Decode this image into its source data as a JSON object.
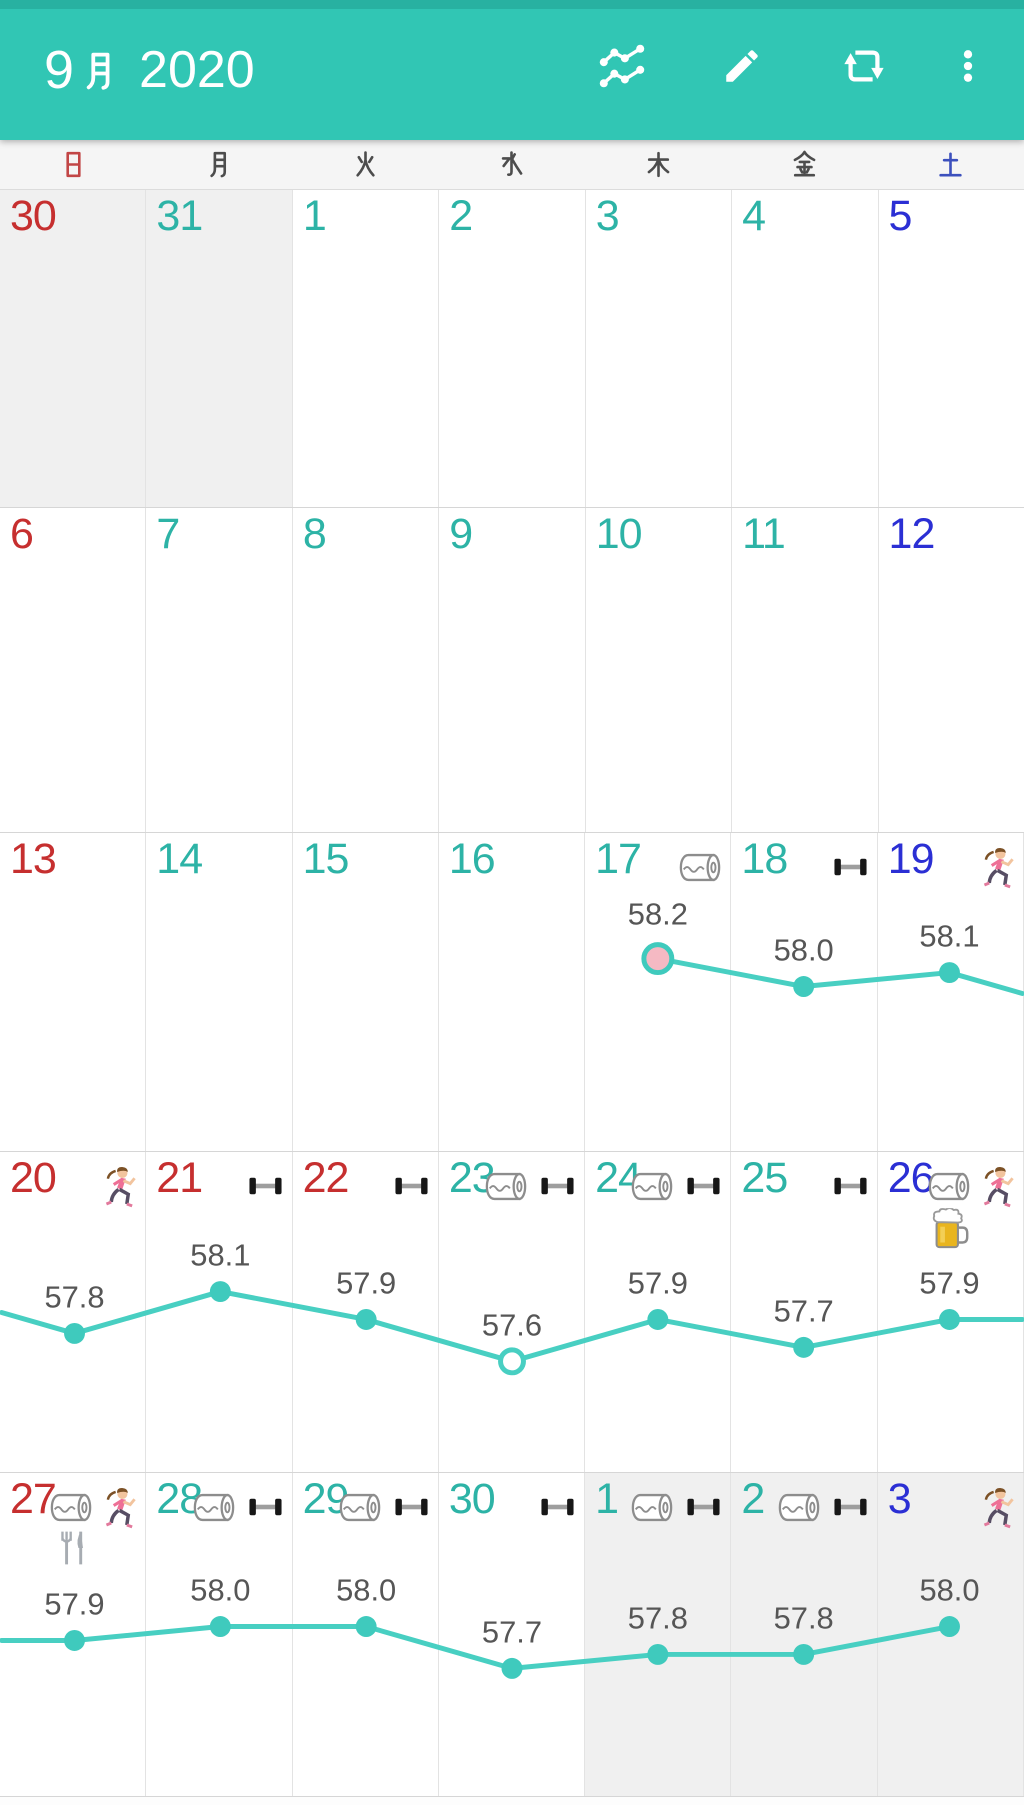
{
  "header": {
    "title_month": "9月",
    "title_month_digit": "9",
    "title_year": "2020",
    "title_full": "9月 2020",
    "toolbar_icons": [
      "chart-icon",
      "edit-icon",
      "repeat-icon",
      "overflow-menu-icon"
    ]
  },
  "weekday_header": [
    {
      "label": "日",
      "glyph": "sun",
      "color": "#c24646"
    },
    {
      "label": "月",
      "glyph": "moon",
      "color": "#4d4d4d"
    },
    {
      "label": "火",
      "glyph": "fire",
      "color": "#4d4d4d"
    },
    {
      "label": "水",
      "glyph": "water",
      "color": "#4d4d4d"
    },
    {
      "label": "木",
      "glyph": "tree",
      "color": "#4d4d4d"
    },
    {
      "label": "金",
      "glyph": "gold",
      "color": "#4d4d4d"
    },
    {
      "label": "土",
      "glyph": "earth",
      "color": "#3c50bd"
    }
  ],
  "colors": {
    "header_bg": "#31c6b4",
    "header_bg_top": "#28b1a1",
    "weekday_num": "#2db3a6",
    "sunday_num": "#c62f2f",
    "saturday_num": "#2b2fd4",
    "holiday_num": "#c62f2f",
    "line": "#48cfc2",
    "dot": "#3fcabd",
    "highlight_dot_fill": "#f5b9c3",
    "open_dot_fill": "#ffffff",
    "weight_label": "#565656",
    "out_month_bg": "#f0f0f0"
  },
  "weeks": [
    {
      "days": [
        {
          "num": "30",
          "type": "sunday",
          "out": true
        },
        {
          "num": "31",
          "type": "weekday",
          "out": true
        },
        {
          "num": "1",
          "type": "weekday"
        },
        {
          "num": "2",
          "type": "weekday"
        },
        {
          "num": "3",
          "type": "weekday"
        },
        {
          "num": "4",
          "type": "weekday"
        },
        {
          "num": "5",
          "type": "saturday"
        }
      ]
    },
    {
      "days": [
        {
          "num": "6",
          "type": "sunday"
        },
        {
          "num": "7",
          "type": "weekday"
        },
        {
          "num": "8",
          "type": "weekday"
        },
        {
          "num": "9",
          "type": "weekday"
        },
        {
          "num": "10",
          "type": "weekday"
        },
        {
          "num": "11",
          "type": "weekday"
        },
        {
          "num": "12",
          "type": "saturday"
        }
      ]
    },
    {
      "days": [
        {
          "num": "13",
          "type": "sunday"
        },
        {
          "num": "14",
          "type": "weekday"
        },
        {
          "num": "15",
          "type": "weekday"
        },
        {
          "num": "16",
          "type": "weekday"
        },
        {
          "num": "17",
          "type": "weekday",
          "icons": [
            "toilet-paper"
          ],
          "weight": "58.2",
          "marker": "highlight"
        },
        {
          "num": "18",
          "type": "weekday",
          "icons": [
            "dumbbell"
          ],
          "weight": "58.0"
        },
        {
          "num": "19",
          "type": "saturday",
          "icons": [
            "runner"
          ],
          "weight": "58.1"
        }
      ]
    },
    {
      "days": [
        {
          "num": "20",
          "type": "sunday",
          "icons": [
            "runner"
          ],
          "weight": "57.8"
        },
        {
          "num": "21",
          "type": "holiday",
          "icons": [
            "dumbbell"
          ],
          "weight": "58.1"
        },
        {
          "num": "22",
          "type": "holiday",
          "icons": [
            "dumbbell"
          ],
          "weight": "57.9"
        },
        {
          "num": "23",
          "type": "weekday",
          "icons": [
            "toilet-paper",
            "dumbbell"
          ],
          "weight": "57.6",
          "marker": "open"
        },
        {
          "num": "24",
          "type": "weekday",
          "icons": [
            "toilet-paper",
            "dumbbell"
          ],
          "weight": "57.9"
        },
        {
          "num": "25",
          "type": "weekday",
          "icons": [
            "dumbbell"
          ],
          "weight": "57.7"
        },
        {
          "num": "26",
          "type": "saturday",
          "icons": [
            "toilet-paper",
            "runner"
          ],
          "icons2": [
            "beer"
          ],
          "weight": "57.9"
        }
      ]
    },
    {
      "days": [
        {
          "num": "27",
          "type": "sunday",
          "icons": [
            "toilet-paper",
            "runner"
          ],
          "icons2": [
            "fork-knife"
          ],
          "weight": "57.9"
        },
        {
          "num": "28",
          "type": "weekday",
          "icons": [
            "toilet-paper",
            "dumbbell"
          ],
          "weight": "58.0"
        },
        {
          "num": "29",
          "type": "weekday",
          "icons": [
            "toilet-paper",
            "dumbbell"
          ],
          "weight": "58.0"
        },
        {
          "num": "30",
          "type": "weekday",
          "icons": [
            "dumbbell"
          ],
          "weight": "57.7"
        },
        {
          "num": "1",
          "type": "weekday",
          "out": true,
          "icons": [
            "toilet-paper",
            "dumbbell"
          ],
          "weight": "57.8"
        },
        {
          "num": "2",
          "type": "weekday",
          "out": true,
          "icons": [
            "toilet-paper",
            "dumbbell"
          ],
          "weight": "57.8"
        },
        {
          "num": "3",
          "type": "saturday",
          "out": true,
          "icons": [
            "runner"
          ],
          "weight": "58.0"
        }
      ]
    }
  ],
  "chart_data": {
    "type": "line",
    "x": [
      "9/17",
      "9/18",
      "9/19",
      "9/20",
      "9/21",
      "9/22",
      "9/23",
      "9/24",
      "9/25",
      "9/26",
      "9/27",
      "9/28",
      "9/29",
      "9/30",
      "10/1",
      "10/2",
      "10/3"
    ],
    "values": [
      58.2,
      58.0,
      58.1,
      57.8,
      58.1,
      57.9,
      57.6,
      57.9,
      57.7,
      57.9,
      57.9,
      58.0,
      58.0,
      57.7,
      57.8,
      57.8,
      58.0
    ],
    "series_name": "weight",
    "highlight_marker_x": "9/17",
    "open_marker_x": "9/23",
    "legend": false,
    "gridlines": false
  }
}
